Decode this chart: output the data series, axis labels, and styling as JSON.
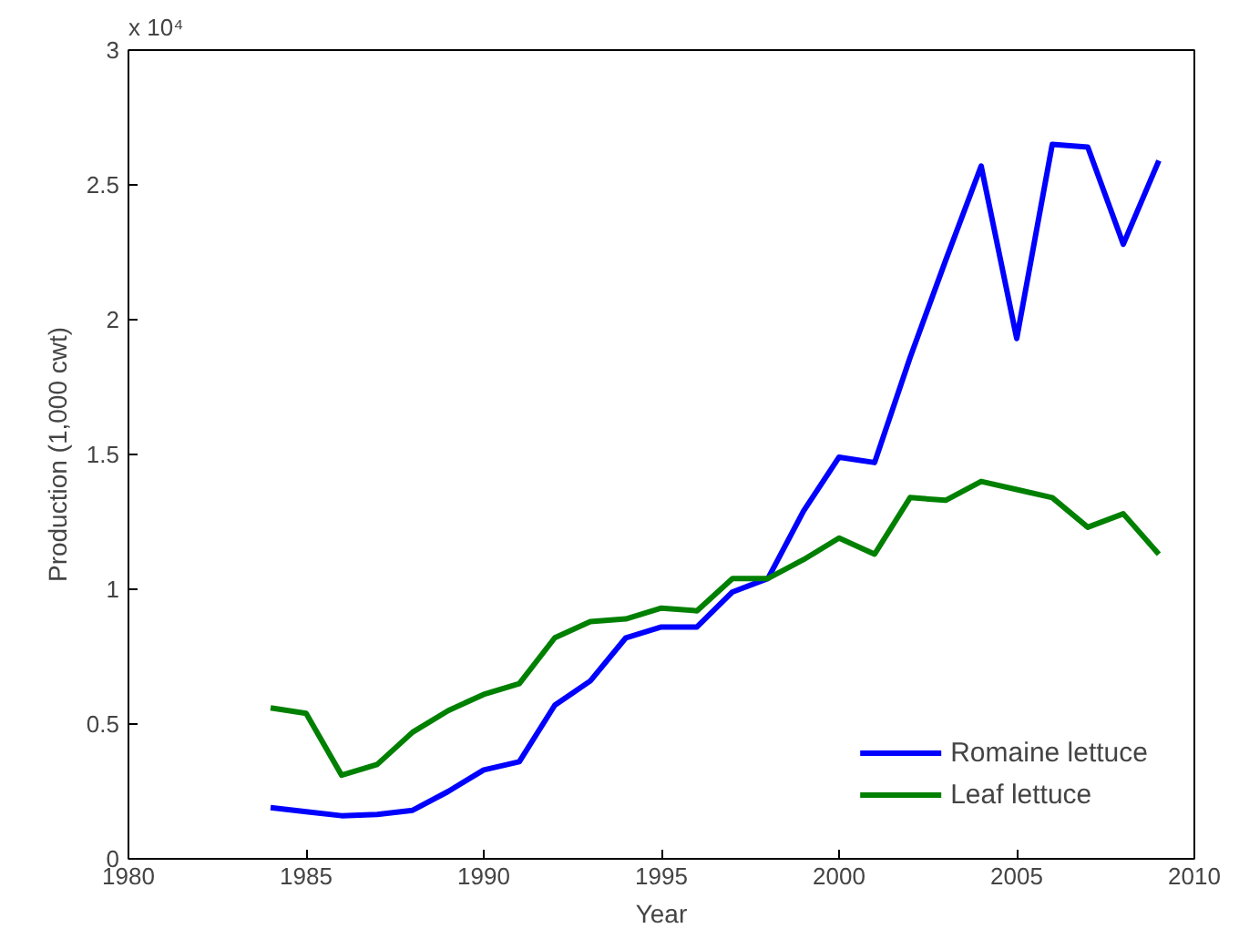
{
  "chart_data": {
    "type": "line",
    "xlabel": "Year",
    "ylabel": "Production (1,000 cwt)",
    "annotations": [
      "x 10⁴"
    ],
    "x": [
      1984,
      1985,
      1986,
      1987,
      1988,
      1989,
      1990,
      1991,
      1992,
      1993,
      1994,
      1995,
      1996,
      1997,
      1998,
      1999,
      2000,
      2001,
      2002,
      2003,
      2004,
      2005,
      2006,
      2007,
      2008,
      2009
    ],
    "series": [
      {
        "name": "Romaine lettuce",
        "color": "#0000ff",
        "values": [
          0.19,
          0.175,
          0.16,
          0.165,
          0.18,
          0.25,
          0.33,
          0.36,
          0.57,
          0.66,
          0.82,
          0.86,
          0.86,
          0.99,
          1.04,
          1.29,
          1.49,
          1.47,
          1.86,
          2.22,
          2.57,
          1.93,
          2.65,
          2.64,
          2.28,
          2.59
        ]
      },
      {
        "name": "Leaf lettuce",
        "color": "#008000",
        "values": [
          0.56,
          0.54,
          0.31,
          0.35,
          0.47,
          0.55,
          0.61,
          0.65,
          0.82,
          0.88,
          0.89,
          0.93,
          0.92,
          1.04,
          1.04,
          1.11,
          1.19,
          1.13,
          1.34,
          1.33,
          1.4,
          1.37,
          1.34,
          1.23,
          1.28,
          1.13
        ]
      }
    ],
    "xlim": [
      1980,
      2010
    ],
    "ylim": [
      0,
      3
    ],
    "xticks": [
      1980,
      1985,
      1990,
      1995,
      2000,
      2005,
      2010
    ],
    "yticks": [
      0,
      0.5,
      1,
      1.5,
      2,
      2.5,
      3
    ],
    "grid": false,
    "legend": "bottom right",
    "line_style": "solid",
    "marker": "none"
  }
}
